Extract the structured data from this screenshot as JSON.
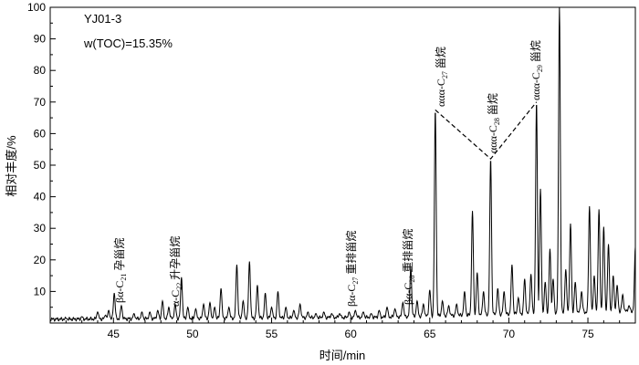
{
  "chart_data": {
    "type": "line",
    "sample_id": "YJ01-3",
    "toc_text": "w(TOC)=15.35%",
    "xlabel": "时间/min",
    "ylabel": "相对丰度/%",
    "xlim": [
      41,
      78
    ],
    "ylim": [
      0,
      100
    ],
    "x_ticks": [
      45,
      50,
      55,
      60,
      65,
      70,
      75
    ],
    "y_ticks": [
      10,
      20,
      30,
      40,
      50,
      60,
      70,
      80,
      90,
      100
    ],
    "peaks": [
      {
        "x": 42.0,
        "y": 1.5
      },
      {
        "x": 43.0,
        "y": 2.0
      },
      {
        "x": 44.0,
        "y": 3.5
      },
      {
        "x": 44.5,
        "y": 2.5
      },
      {
        "x": 44.7,
        "y": 4.0
      },
      {
        "x": 45.05,
        "y": 9.5
      },
      {
        "x": 45.5,
        "y": 5.5
      },
      {
        "x": 46.3,
        "y": 3.0
      },
      {
        "x": 46.8,
        "y": 3.5
      },
      {
        "x": 47.3,
        "y": 3.5
      },
      {
        "x": 47.8,
        "y": 4.0
      },
      {
        "x": 48.1,
        "y": 7.0
      },
      {
        "x": 48.5,
        "y": 5.0
      },
      {
        "x": 48.9,
        "y": 6.0
      },
      {
        "x": 49.3,
        "y": 14.5
      },
      {
        "x": 49.7,
        "y": 5.0
      },
      {
        "x": 50.2,
        "y": 4.5
      },
      {
        "x": 50.7,
        "y": 6.0
      },
      {
        "x": 51.1,
        "y": 6.5
      },
      {
        "x": 51.4,
        "y": 5.0
      },
      {
        "x": 51.8,
        "y": 11.0
      },
      {
        "x": 52.3,
        "y": 5.0
      },
      {
        "x": 52.8,
        "y": 18.5
      },
      {
        "x": 53.2,
        "y": 7.0
      },
      {
        "x": 53.6,
        "y": 19.5
      },
      {
        "x": 54.1,
        "y": 12.0
      },
      {
        "x": 54.6,
        "y": 9.5
      },
      {
        "x": 55.0,
        "y": 5.0
      },
      {
        "x": 55.4,
        "y": 10.0
      },
      {
        "x": 55.9,
        "y": 5.0
      },
      {
        "x": 56.4,
        "y": 4.0
      },
      {
        "x": 56.8,
        "y": 6.0
      },
      {
        "x": 57.3,
        "y": 3.5
      },
      {
        "x": 57.8,
        "y": 3.0
      },
      {
        "x": 58.3,
        "y": 3.5
      },
      {
        "x": 58.8,
        "y": 3.0
      },
      {
        "x": 59.3,
        "y": 3.0
      },
      {
        "x": 59.9,
        "y": 3.5
      },
      {
        "x": 60.3,
        "y": 4.0
      },
      {
        "x": 60.8,
        "y": 3.5
      },
      {
        "x": 61.3,
        "y": 3.0
      },
      {
        "x": 61.8,
        "y": 4.0
      },
      {
        "x": 62.3,
        "y": 5.0
      },
      {
        "x": 62.8,
        "y": 4.5
      },
      {
        "x": 63.3,
        "y": 6.5
      },
      {
        "x": 63.8,
        "y": 17.5
      },
      {
        "x": 64.2,
        "y": 7.0
      },
      {
        "x": 64.6,
        "y": 6.0
      },
      {
        "x": 65.0,
        "y": 10.5
      },
      {
        "x": 65.35,
        "y": 67.5
      },
      {
        "x": 65.8,
        "y": 7.0
      },
      {
        "x": 66.2,
        "y": 5.5
      },
      {
        "x": 66.7,
        "y": 6.0
      },
      {
        "x": 67.2,
        "y": 10.0
      },
      {
        "x": 67.7,
        "y": 35.5
      },
      {
        "x": 68.0,
        "y": 16.0
      },
      {
        "x": 68.4,
        "y": 10.0
      },
      {
        "x": 68.85,
        "y": 52.0
      },
      {
        "x": 69.3,
        "y": 11.0
      },
      {
        "x": 69.7,
        "y": 10.0
      },
      {
        "x": 70.2,
        "y": 18.5
      },
      {
        "x": 70.6,
        "y": 8.0
      },
      {
        "x": 71.0,
        "y": 14.0
      },
      {
        "x": 71.4,
        "y": 15.5
      },
      {
        "x": 71.75,
        "y": 70.0
      },
      {
        "x": 72.0,
        "y": 42.5
      },
      {
        "x": 72.3,
        "y": 13.0
      },
      {
        "x": 72.6,
        "y": 23.5
      },
      {
        "x": 72.8,
        "y": 14.0
      },
      {
        "x": 73.2,
        "y": 100.0
      },
      {
        "x": 73.6,
        "y": 17.0
      },
      {
        "x": 73.9,
        "y": 31.5
      },
      {
        "x": 74.2,
        "y": 13.0
      },
      {
        "x": 74.6,
        "y": 10.0
      },
      {
        "x": 75.1,
        "y": 37.0
      },
      {
        "x": 75.4,
        "y": 15.0
      },
      {
        "x": 75.7,
        "y": 36.0
      },
      {
        "x": 76.0,
        "y": 30.5
      },
      {
        "x": 76.3,
        "y": 25.0
      },
      {
        "x": 76.6,
        "y": 15.0
      },
      {
        "x": 76.85,
        "y": 12.0
      },
      {
        "x": 77.2,
        "y": 9.0
      },
      {
        "x": 77.6,
        "y": 5.5
      },
      {
        "x": 78.0,
        "y": 24.0
      }
    ],
    "annotations": {
      "bas21": {
        "pre": "βα-C",
        "sub": "21",
        "post": " 孕甾烷",
        "x": 45.05
      },
      "ac22": {
        "pre": "α-C",
        "sub": "22",
        "post": " 升孕甾烷",
        "x": 49.3
      },
      "bac27": {
        "pre": "βα-C",
        "sub": "27",
        "post": " 重排甾烷",
        "x": 60.0
      },
      "bac28": {
        "pre": "βα-C",
        "sub": "28",
        "post": " 重排甾烷",
        "x": 63.8
      },
      "aaac27": {
        "pre": "ααα-C",
        "sub": "27",
        "post": " 甾烷",
        "x": 65.35
      },
      "aaac28": {
        "pre": "ααα-C",
        "sub": "28",
        "post": " 甾烷",
        "x": 68.85
      },
      "aaac29": {
        "pre": "ααα-C",
        "sub": "29",
        "post": " 甾烷",
        "x": 71.75
      }
    }
  }
}
